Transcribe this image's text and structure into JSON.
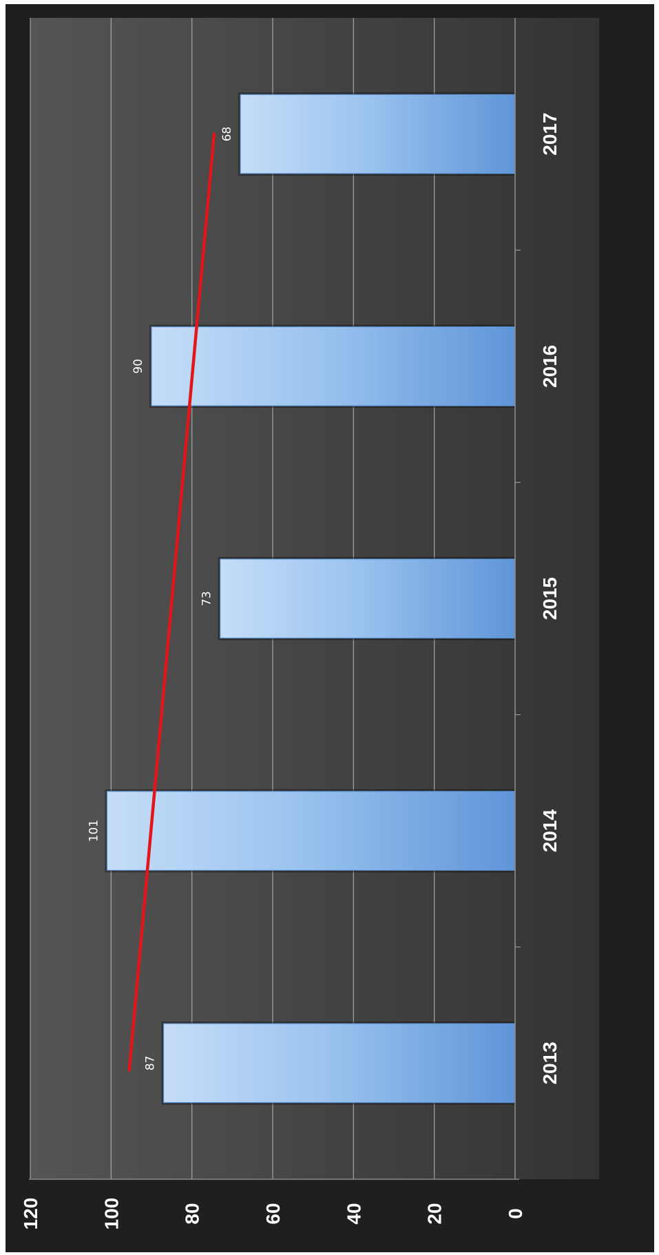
{
  "chart_data": {
    "type": "bar",
    "orientation": "rotated-90",
    "categories": [
      "2013",
      "2014",
      "2015",
      "2016",
      "2017"
    ],
    "values": [
      87,
      101,
      73,
      90,
      68
    ],
    "data_labels": [
      "87",
      "101",
      "73",
      "90",
      "68"
    ],
    "trendline": {
      "type": "linear",
      "start": 95.5,
      "end": 74.5
    },
    "ylim": [
      0,
      120
    ],
    "yticks": [
      "0",
      "20",
      "40",
      "60",
      "80",
      "100",
      "120"
    ],
    "grid": true,
    "colors": {
      "bar": "#8db8ea",
      "bar_edge": "#5b8fcf",
      "plot_bg": "#3d3d3d",
      "outer_bg": "#1c1c1c",
      "gridline": "#bcbcbc",
      "trendline": "#e0161a",
      "text": "#ffffff"
    }
  }
}
